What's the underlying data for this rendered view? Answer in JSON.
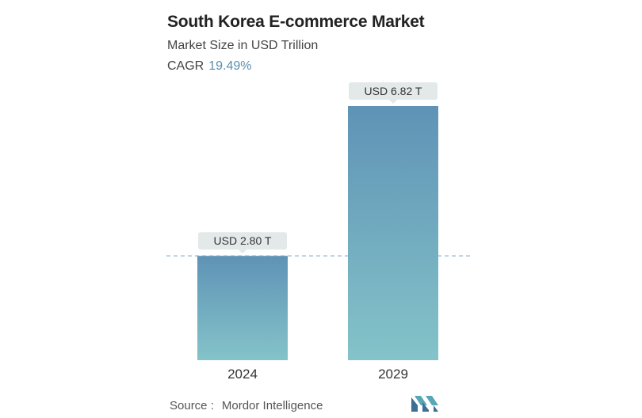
{
  "header": {
    "title": "South Korea E-commerce Market",
    "subtitle": "Market Size in USD Trillion",
    "cagr_label": "CAGR",
    "cagr_value": "19.49%"
  },
  "footer": {
    "source_label": "Source :",
    "source_value": "Mordor Intelligence",
    "logo_icon": "mordor-intelligence-logo-icon"
  },
  "colors": {
    "bar_top": "#5f93b6",
    "bar_bottom": "#84c3c9",
    "label_bg": "#e3e9e9",
    "dashed_line": "#7fa7c2",
    "cagr_accent": "#5a8fb0"
  },
  "chart_data": {
    "type": "bar",
    "categories": [
      "2024",
      "2029"
    ],
    "values": [
      2.8,
      6.82
    ],
    "value_labels": [
      "USD 2.80 T",
      "USD 6.82 T"
    ],
    "title": "South Korea E-commerce Market",
    "subtitle": "Market Size in USD Trillion",
    "reference_line": 2.8,
    "ylim": [
      0,
      6.82
    ],
    "grid": false,
    "legend": "none"
  }
}
